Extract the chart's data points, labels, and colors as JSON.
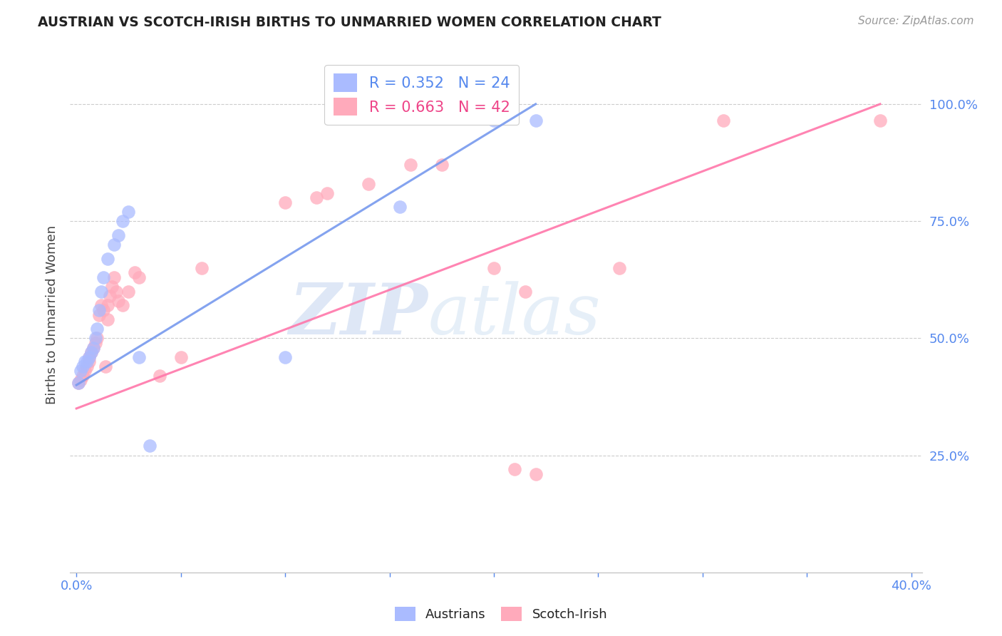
{
  "title": "AUSTRIAN VS SCOTCH-IRISH BIRTHS TO UNMARRIED WOMEN CORRELATION CHART",
  "source": "Source: ZipAtlas.com",
  "ylabel": "Births to Unmarried Women",
  "watermark_zip": "ZIP",
  "watermark_atlas": "atlas",
  "austrians_color": "#aabbff",
  "scotch_color": "#ffaabb",
  "austrians_line_color": "#7799ee",
  "scotch_line_color": "#ff77aa",
  "legend_aus_r": "R = 0.352",
  "legend_aus_n": "N = 24",
  "legend_sco_r": "R = 0.663",
  "legend_sco_n": "N = 42",
  "right_yticks": [
    0.25,
    0.5,
    0.75,
    1.0
  ],
  "right_yticklabels": [
    "25.0%",
    "50.0%",
    "75.0%",
    "100.0%"
  ],
  "xmin": -0.003,
  "xmax": 0.405,
  "ymin": 0.0,
  "ymax": 1.1,
  "aus_x": [
    0.001,
    0.002,
    0.003,
    0.004,
    0.005,
    0.006,
    0.007,
    0.008,
    0.009,
    0.01,
    0.011,
    0.012,
    0.013,
    0.015,
    0.018,
    0.02,
    0.022,
    0.025,
    0.03,
    0.035,
    0.1,
    0.155,
    0.2,
    0.22
  ],
  "aus_y": [
    0.405,
    0.43,
    0.44,
    0.45,
    0.45,
    0.46,
    0.47,
    0.48,
    0.5,
    0.52,
    0.56,
    0.6,
    0.63,
    0.67,
    0.7,
    0.72,
    0.75,
    0.77,
    0.46,
    0.27,
    0.46,
    0.78,
    0.965,
    0.965
  ],
  "sco_x": [
    0.001,
    0.002,
    0.003,
    0.004,
    0.005,
    0.006,
    0.006,
    0.007,
    0.008,
    0.009,
    0.01,
    0.011,
    0.012,
    0.013,
    0.014,
    0.015,
    0.015,
    0.016,
    0.017,
    0.018,
    0.019,
    0.02,
    0.022,
    0.025,
    0.028,
    0.03,
    0.04,
    0.05,
    0.06,
    0.1,
    0.115,
    0.12,
    0.14,
    0.16,
    0.175,
    0.2,
    0.21,
    0.215,
    0.22,
    0.26,
    0.31,
    0.385
  ],
  "sco_y": [
    0.405,
    0.41,
    0.42,
    0.43,
    0.44,
    0.45,
    0.46,
    0.47,
    0.48,
    0.49,
    0.5,
    0.55,
    0.57,
    0.56,
    0.44,
    0.54,
    0.57,
    0.59,
    0.61,
    0.63,
    0.6,
    0.58,
    0.57,
    0.6,
    0.64,
    0.63,
    0.42,
    0.46,
    0.65,
    0.79,
    0.8,
    0.81,
    0.83,
    0.87,
    0.87,
    0.65,
    0.22,
    0.6,
    0.21,
    0.65,
    0.965,
    0.965
  ]
}
